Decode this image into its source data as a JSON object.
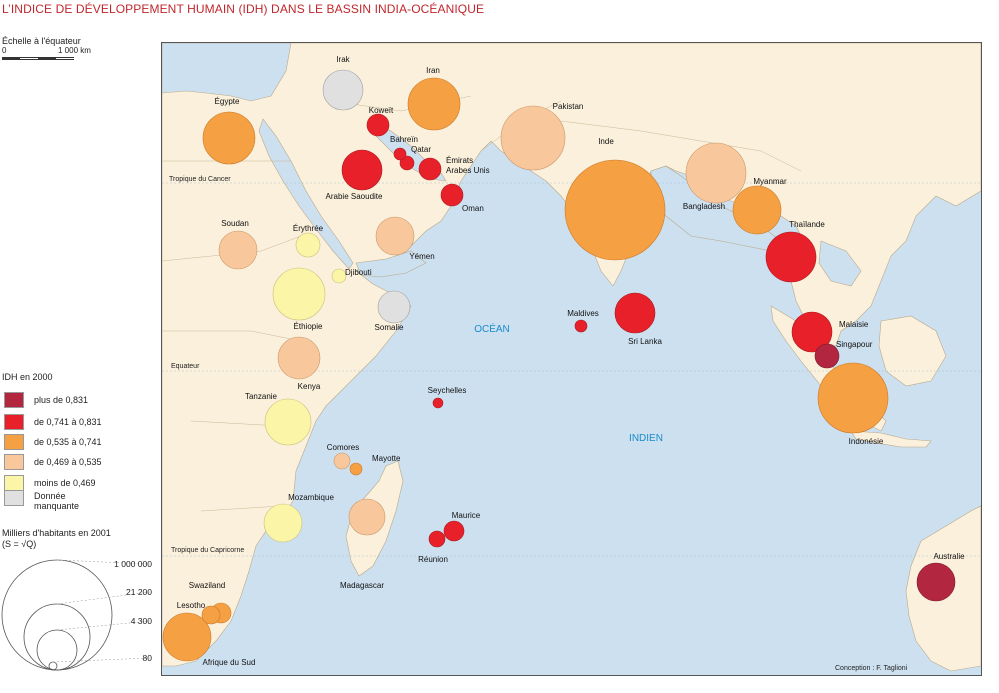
{
  "title": "L’INDICE DE DÉVELOPPEMENT HUMAIN  (IDH) DANS LE BASSIN INDIA-OCÉANIQUE",
  "scale": {
    "label": "Échelle à l'équateur",
    "start": "0",
    "end": "1 000 km"
  },
  "legend_idh": {
    "title": "IDH en 2000",
    "classes": [
      {
        "label": "plus de 0,831",
        "color": "#b3263f"
      },
      {
        "label": "de 0,741 à 0,831",
        "color": "#e8202a"
      },
      {
        "label": "de 0,535 à 0,741",
        "color": "#f5a043"
      },
      {
        "label": "de 0,469 à 0,535",
        "color": "#f8c79b"
      },
      {
        "label": "moins de 0,469",
        "color": "#fbf5a8"
      },
      {
        "label1": "Donnée",
        "label2": "manquante",
        "color": "#e0e0e0"
      }
    ]
  },
  "legend_pop": {
    "title1": "Milliers d'habitants en 2001",
    "title2": "(S = √Q)",
    "values": [
      "1 000 000",
      "21 200",
      "4 300",
      "80"
    ]
  },
  "map_labels": {
    "ocean1": "OCÉAN",
    "ocean2": "INDIEN",
    "tropic_cancer": "Tropique du Cancer",
    "equator": "Equateur",
    "tropic_capricorn": "Tropique du Capricorne",
    "credit": "Conception : F. Taglioni"
  },
  "countries": [
    {
      "name": "Irak",
      "idh_class": 5
    },
    {
      "name": "Iran",
      "idh_class": 2
    },
    {
      "name": "Égypte",
      "idh_class": 2
    },
    {
      "name": "Koweït",
      "idh_class": 1
    },
    {
      "name": "Bahreïn",
      "idh_class": 1
    },
    {
      "name": "Qatar",
      "idh_class": 1
    },
    {
      "name": "Émirats Arabes Unis",
      "idh_class": 1
    },
    {
      "name": "Arabie Saoudite",
      "idh_class": 1
    },
    {
      "name": "Oman",
      "idh_class": 1
    },
    {
      "name": "Pakistan",
      "idh_class": 3
    },
    {
      "name": "Inde",
      "idh_class": 2
    },
    {
      "name": "Bangladesh",
      "idh_class": 3
    },
    {
      "name": "Myanmar",
      "idh_class": 2
    },
    {
      "name": "Thaïlande",
      "idh_class": 1
    },
    {
      "name": "Soudan",
      "idh_class": 3
    },
    {
      "name": "Érythrée",
      "idh_class": 4
    },
    {
      "name": "Yémen",
      "idh_class": 3
    },
    {
      "name": "Djibouti",
      "idh_class": 4
    },
    {
      "name": "Éthiopie",
      "idh_class": 4
    },
    {
      "name": "Somalie",
      "idh_class": 5
    },
    {
      "name": "Maldives",
      "idh_class": 1
    },
    {
      "name": "Sri Lanka",
      "idh_class": 1
    },
    {
      "name": "Malaisie",
      "idh_class": 1
    },
    {
      "name": "Singapour",
      "idh_class": 0
    },
    {
      "name": "Kenya",
      "idh_class": 3
    },
    {
      "name": "Tanzanie",
      "idh_class": 4
    },
    {
      "name": "Seychelles",
      "idh_class": 1
    },
    {
      "name": "Indonésie",
      "idh_class": 2
    },
    {
      "name": "Comores",
      "idh_class": 3
    },
    {
      "name": "Mayotte",
      "idh_class": 2
    },
    {
      "name": "Mozambique",
      "idh_class": 4
    },
    {
      "name": "Madagascar",
      "idh_class": 3
    },
    {
      "name": "Maurice",
      "idh_class": 1
    },
    {
      "name": "Réunion",
      "idh_class": 1
    },
    {
      "name": "Swaziland",
      "idh_class": 2
    },
    {
      "name": "Lesotho",
      "idh_class": 2
    },
    {
      "name": "Afrique du Sud",
      "idh_class": 2
    },
    {
      "name": "Australie",
      "idh_class": 0
    }
  ]
}
